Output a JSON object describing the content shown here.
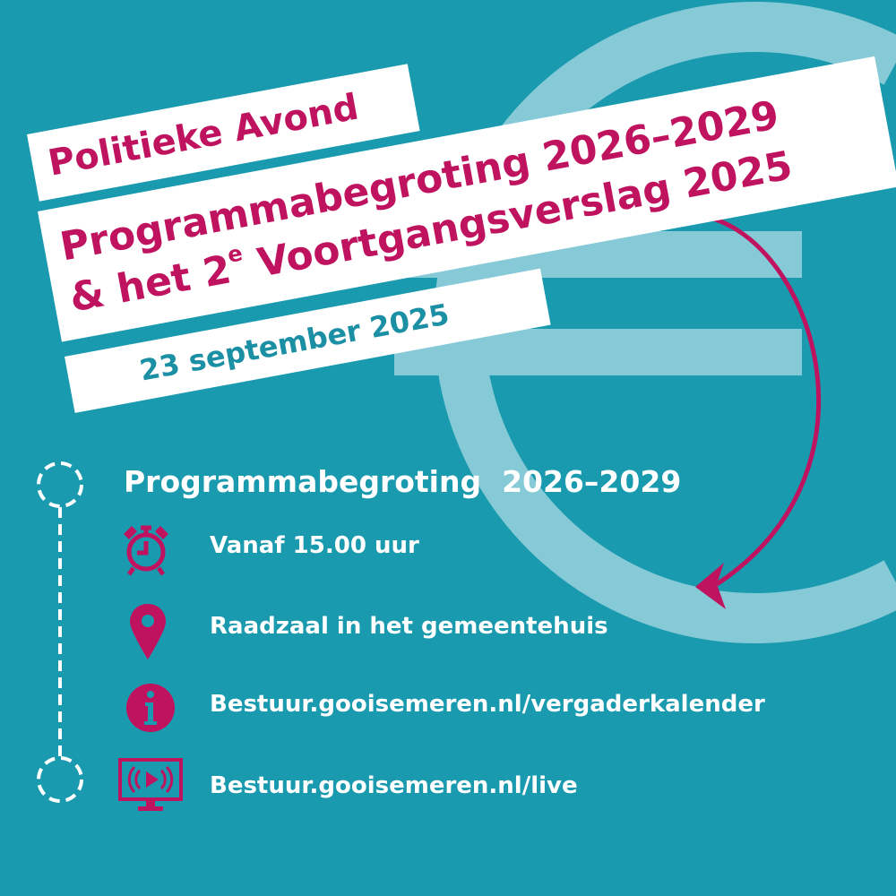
{
  "colors": {
    "background": "#1a9aae",
    "euro": "#86cad8",
    "accent": "#c0135f",
    "date": "#1b8fa3"
  },
  "banner": {
    "line1": "Politieke Avond",
    "line2": "Programmabegroting 2026–2029",
    "line3_pre": "& het 2",
    "line3_sup": "e",
    "line3_post": " Voortgangsverslag 2025",
    "date": "23 september 2025"
  },
  "schedule": {
    "heading": "Programmabegroting  2026–2029",
    "items": [
      {
        "icon": "alarm-clock-icon",
        "text": "Vanaf 15.00 uur"
      },
      {
        "icon": "location-pin-icon",
        "text": "Raadzaal in het gemeentehuis"
      },
      {
        "icon": "info-icon",
        "text": "Bestuur.gooisemeren.nl/vergaderkalender"
      },
      {
        "icon": "live-stream-monitor-icon",
        "text": "Bestuur.gooisemeren.nl/live"
      }
    ]
  }
}
